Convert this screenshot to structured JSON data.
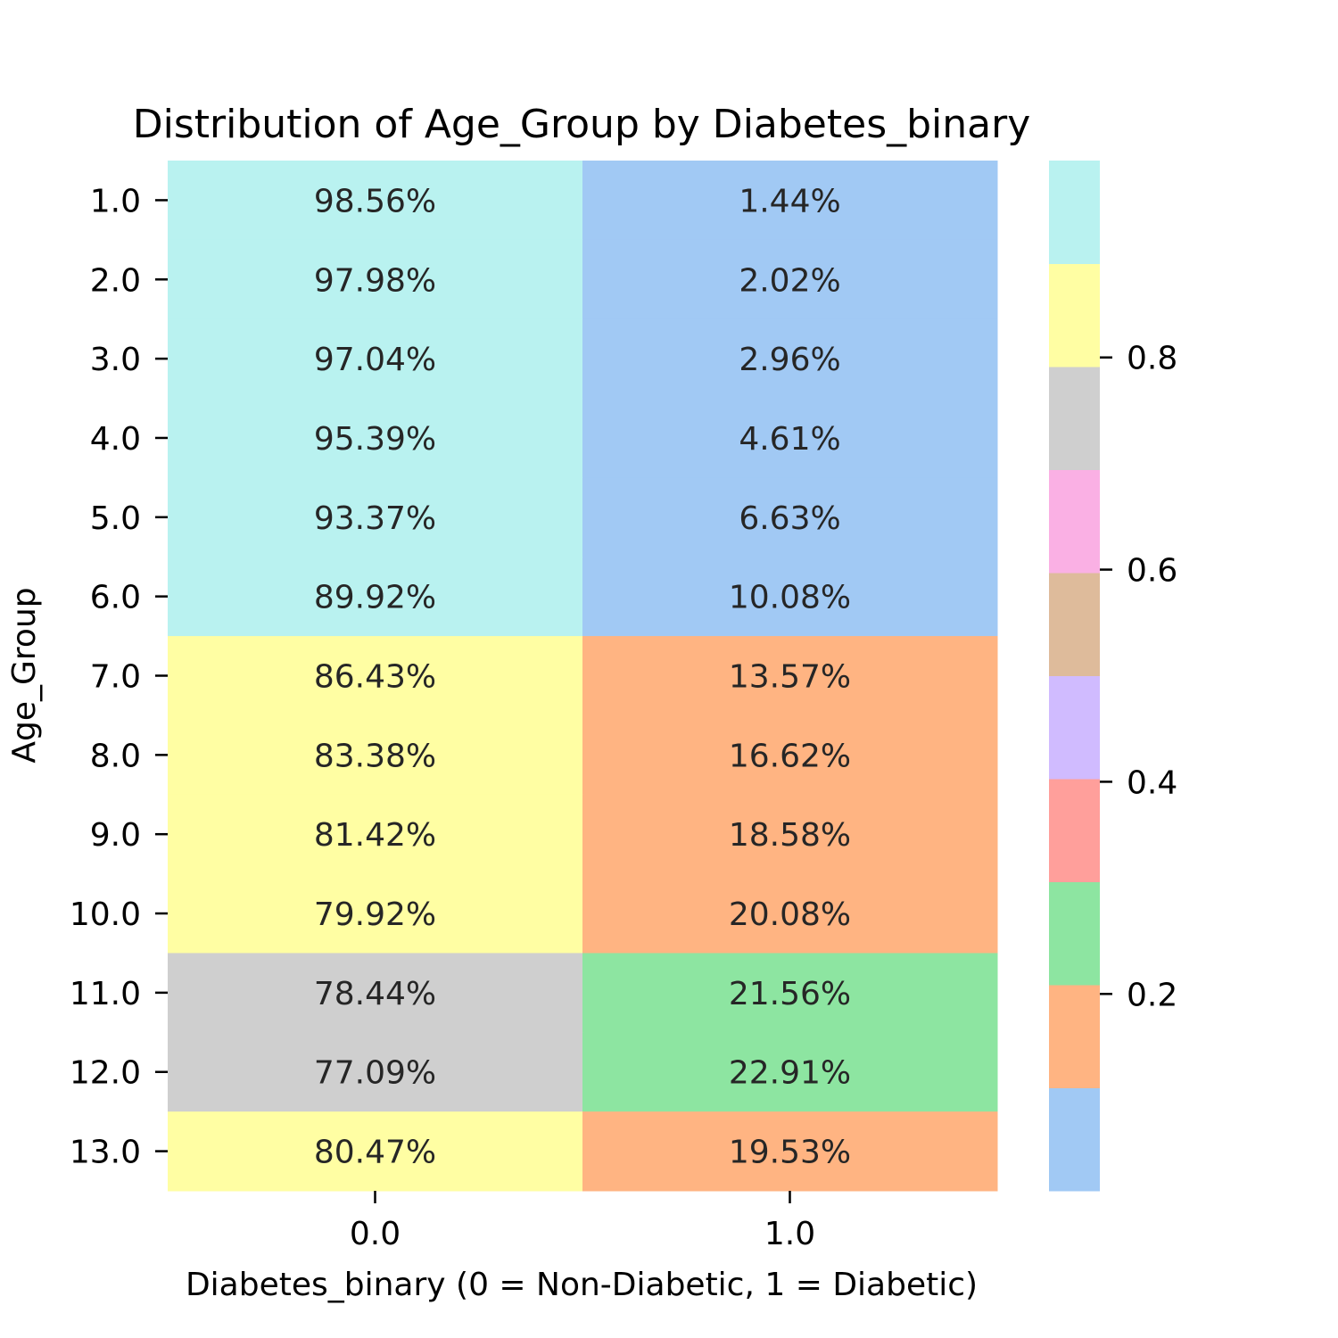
{
  "chart_data": {
    "type": "heatmap",
    "title": "Distribution of Age_Group by Diabetes_binary",
    "xlabel": "Diabetes_binary (0 = Non-Diabetic, 1 = Diabetic)",
    "ylabel": "Age_Group",
    "x_categories": [
      "0.0",
      "1.0"
    ],
    "y_categories": [
      "1.0",
      "2.0",
      "3.0",
      "4.0",
      "5.0",
      "6.0",
      "7.0",
      "8.0",
      "9.0",
      "10.0",
      "11.0",
      "12.0",
      "13.0"
    ],
    "values": [
      [
        0.9856,
        0.0144
      ],
      [
        0.9798,
        0.0202
      ],
      [
        0.9704,
        0.0296
      ],
      [
        0.9539,
        0.0461
      ],
      [
        0.9337,
        0.0663
      ],
      [
        0.8992,
        0.1008
      ],
      [
        0.8643,
        0.1357
      ],
      [
        0.8338,
        0.1662
      ],
      [
        0.8142,
        0.1858
      ],
      [
        0.7992,
        0.2008
      ],
      [
        0.7844,
        0.2156
      ],
      [
        0.7709,
        0.2291
      ],
      [
        0.8047,
        0.1953
      ]
    ],
    "cell_labels": [
      [
        "98.56%",
        "1.44%"
      ],
      [
        "97.98%",
        "2.02%"
      ],
      [
        "97.04%",
        "2.96%"
      ],
      [
        "95.39%",
        "4.61%"
      ],
      [
        "93.37%",
        "6.63%"
      ],
      [
        "89.92%",
        "10.08%"
      ],
      [
        "86.43%",
        "13.57%"
      ],
      [
        "83.38%",
        "16.62%"
      ],
      [
        "81.42%",
        "18.58%"
      ],
      [
        "79.92%",
        "20.08%"
      ],
      [
        "78.44%",
        "21.56%"
      ],
      [
        "77.09%",
        "22.91%"
      ],
      [
        "80.47%",
        "19.53%"
      ]
    ],
    "colorbar": {
      "vmin": 0.0144,
      "vmax": 0.9856,
      "ticks": [
        0.2,
        0.4,
        0.6,
        0.8
      ],
      "tick_labels": [
        "0.2",
        "0.4",
        "0.6",
        "0.8"
      ],
      "palette": [
        "#a1c9f4",
        "#ffb482",
        "#8de5a1",
        "#ff9f9b",
        "#d0bbff",
        "#debb9b",
        "#fab0e4",
        "#cfcfcf",
        "#fffea3",
        "#b9f2f0"
      ]
    },
    "grid": false
  }
}
